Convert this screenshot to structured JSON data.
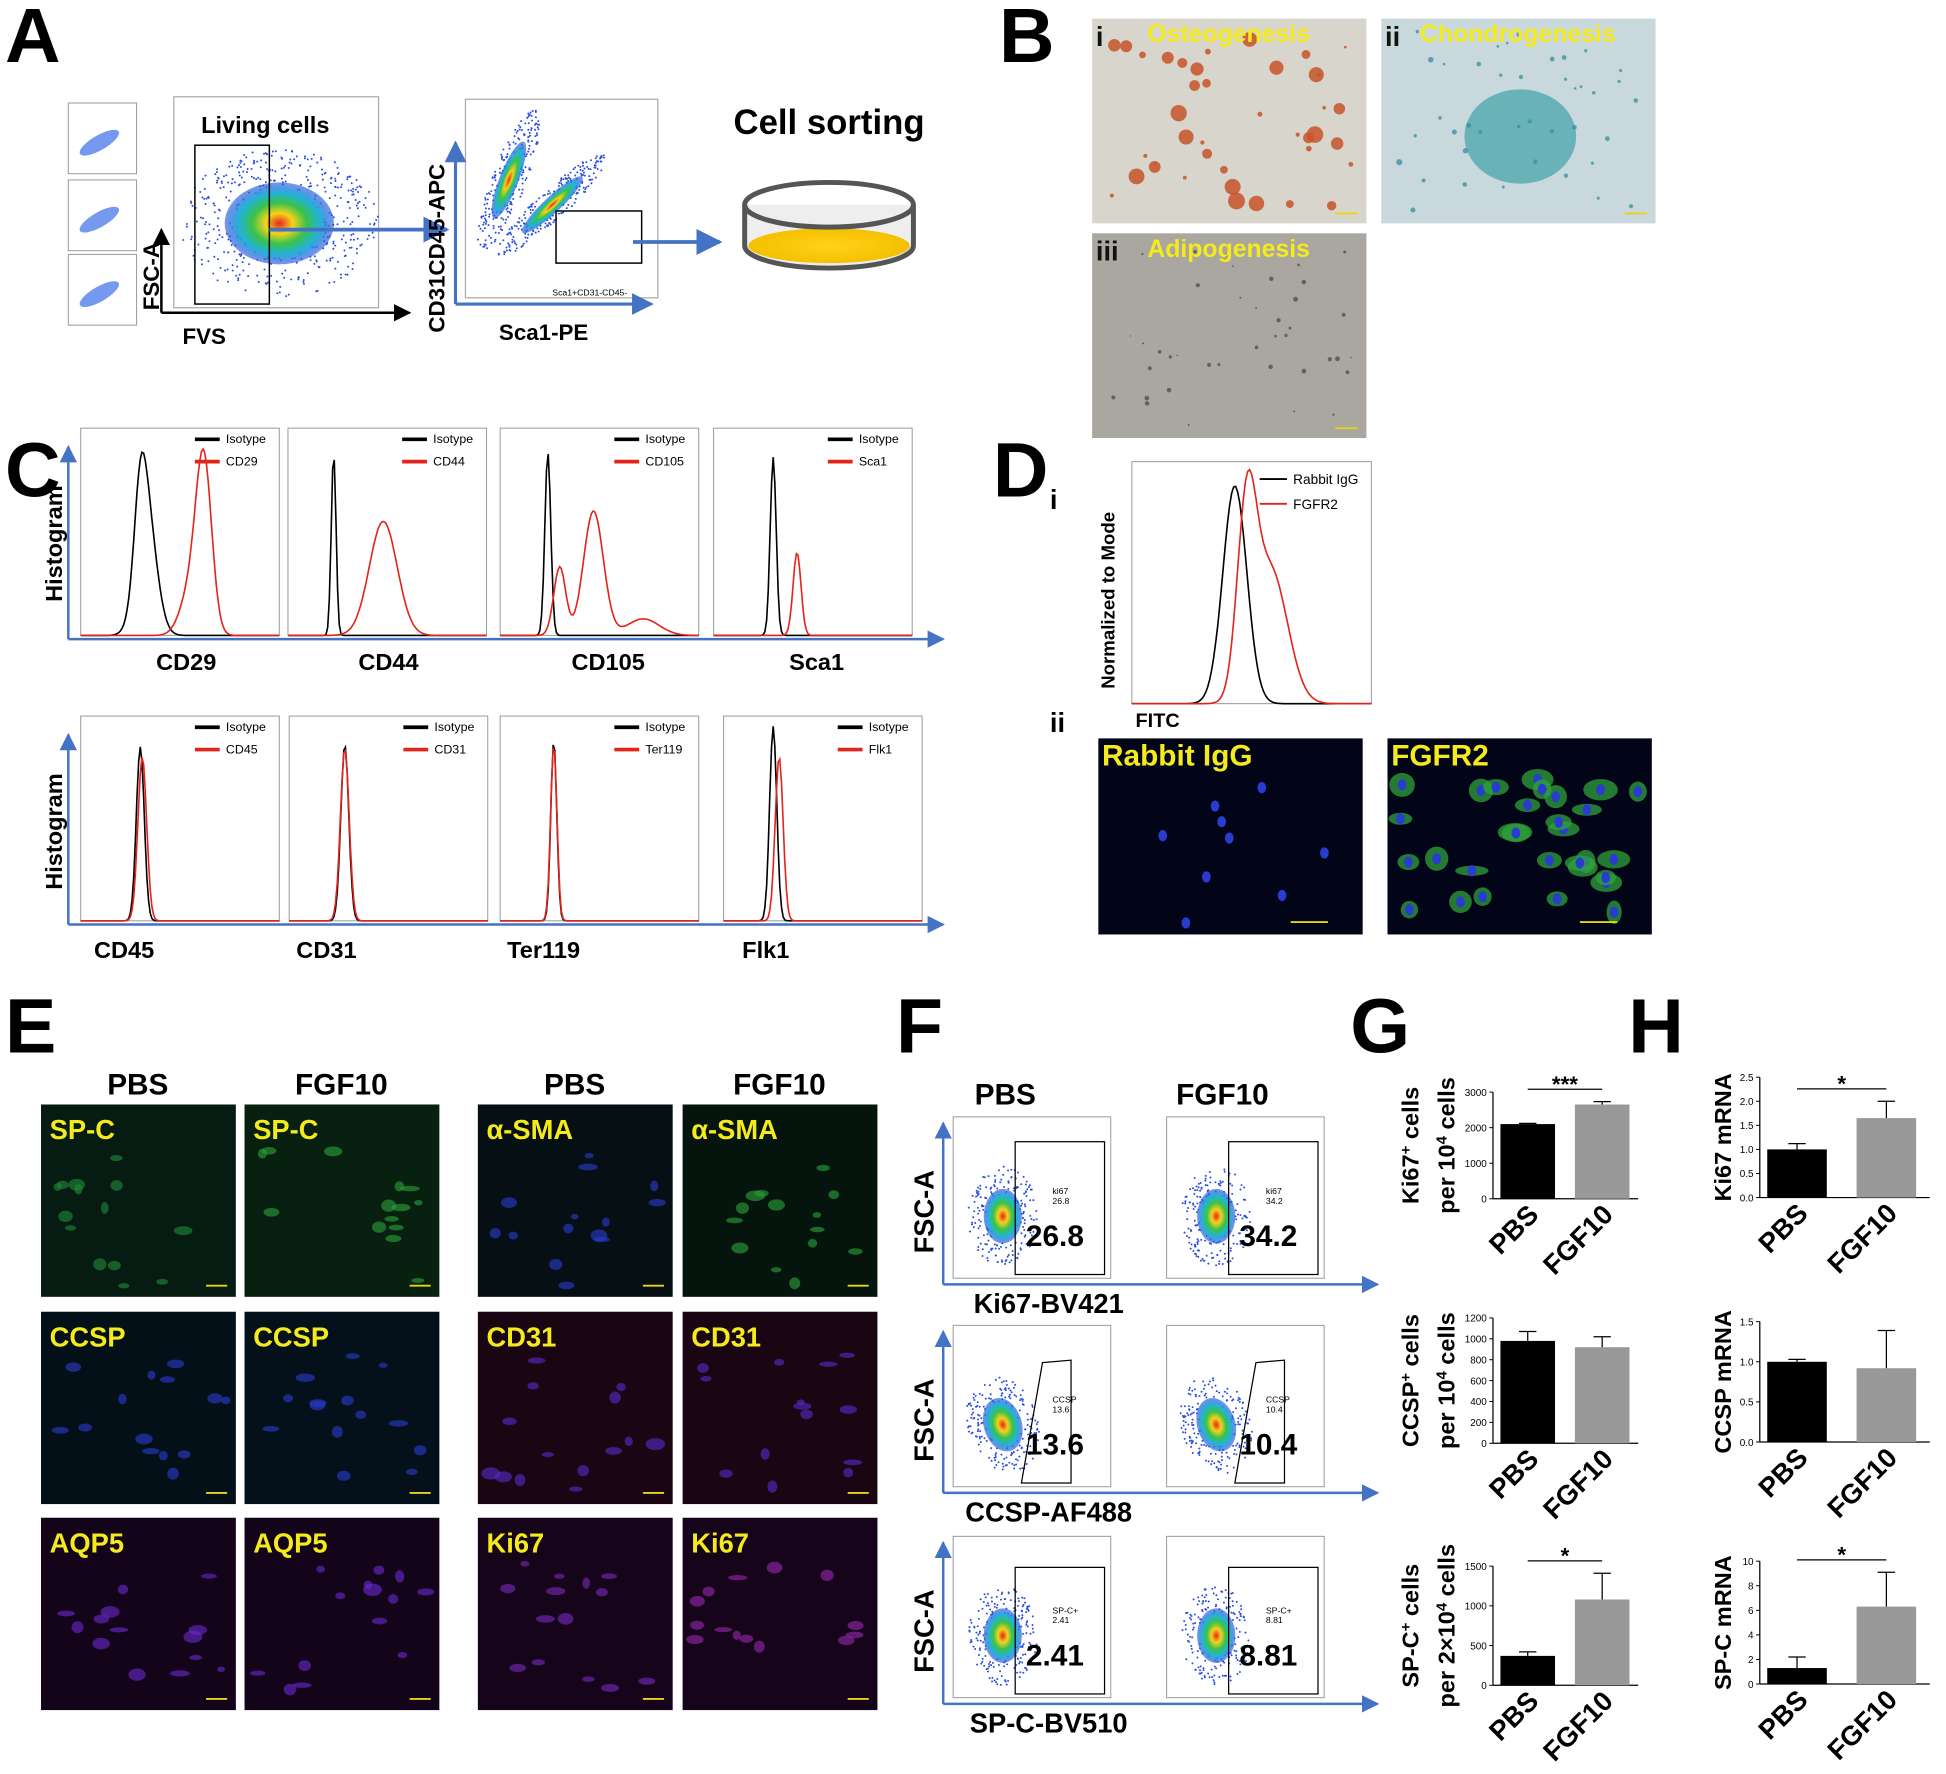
{
  "A": {
    "letter": "A",
    "gate_label": "Living cells",
    "x_label": "FVS",
    "y_label": "FSC-A",
    "gate2_label": "Sca1+CD31-CD45-",
    "x2_label": "Sca1-PE",
    "y2_label": "CD31CD45-APC",
    "sorting_label": "Cell sorting"
  },
  "B": {
    "letter": "B",
    "images": [
      {
        "numeral": "i",
        "label": "Osteogenesis"
      },
      {
        "numeral": "ii",
        "label": "Chondrogenesis"
      },
      {
        "numeral": "iii",
        "label": "Adipogenesis"
      }
    ]
  },
  "C": {
    "letter": "C",
    "rows": [
      {
        "y_label": "Histogram",
        "plots": [
          {
            "control": "Isotype",
            "marker": "CD29"
          },
          {
            "control": "Isotype",
            "marker": "CD44"
          },
          {
            "control": "Isotype",
            "marker": "CD105"
          },
          {
            "control": "Isotype",
            "marker": "Sca1"
          }
        ]
      },
      {
        "y_label": "Histogram",
        "plots": [
          {
            "control": "Isotype",
            "marker": "CD45"
          },
          {
            "control": "Isotype",
            "marker": "CD31"
          },
          {
            "control": "Isotype",
            "marker": "Ter119"
          },
          {
            "control": "Isotype",
            "marker": "Flk1"
          }
        ]
      }
    ]
  },
  "D": {
    "letter": "D",
    "sub_i": "i",
    "sub_ii": "ii",
    "y_label": "Normalized to Mode",
    "x_label": "FITC",
    "legend": [
      "Rabbit IgG",
      "FGFR2"
    ],
    "images": [
      "Rabbit IgG",
      "FGFR2"
    ]
  },
  "E": {
    "letter": "E",
    "groups": [
      {
        "headers": [
          "PBS",
          "FGF10"
        ],
        "rows": [
          "SP-C",
          "CCSP",
          "AQP5"
        ]
      },
      {
        "headers": [
          "PBS",
          "FGF10"
        ],
        "rows": [
          "α-SMA",
          "CD31",
          "Ki67"
        ]
      }
    ]
  },
  "F": {
    "letter": "F",
    "headers": [
      "PBS",
      "FGF10"
    ],
    "y_label": "FSC-A",
    "rows": [
      {
        "x_label": "Ki67-BV421",
        "gate": "ki67",
        "values": [
          26.8,
          34.2
        ]
      },
      {
        "x_label": "CCSP-AF488",
        "gate": "CCSP",
        "values": [
          13.6,
          10.4
        ]
      },
      {
        "x_label": "SP-C-BV510",
        "gate": "SP-C+",
        "values": [
          2.41,
          8.81
        ]
      }
    ]
  },
  "G": {
    "letter": "G",
    "charts": [
      {
        "type": "bar",
        "y_label": [
          [
            "Ki67",
            "+",
            " cells"
          ],
          [
            "per 10",
            "4",
            " cells"
          ]
        ],
        "categories": [
          "PBS",
          "FGF10"
        ],
        "values": [
          2100,
          2650
        ],
        "errors": [
          20,
          80
        ],
        "colors": [
          "#000000",
          "#999999"
        ],
        "ylim": [
          0,
          3000
        ],
        "yticks": [
          0,
          1000,
          2000,
          3000
        ],
        "significance": "***"
      },
      {
        "type": "bar",
        "y_label": [
          [
            "CCSP",
            "+",
            " cells"
          ],
          [
            "per 10",
            "4",
            " cells"
          ]
        ],
        "categories": [
          "PBS",
          "FGF10"
        ],
        "values": [
          980,
          920
        ],
        "errors": [
          90,
          100
        ],
        "colors": [
          "#000000",
          "#999999"
        ],
        "ylim": [
          0,
          1200
        ],
        "yticks": [
          0,
          200,
          400,
          600,
          800,
          1000,
          1200
        ]
      },
      {
        "type": "bar",
        "y_label": [
          [
            "SP-C",
            "+",
            " cells"
          ],
          [
            "per 2×10",
            "4",
            " cells"
          ]
        ],
        "categories": [
          "PBS",
          "FGF10"
        ],
        "values": [
          370,
          1080
        ],
        "errors": [
          50,
          330
        ],
        "colors": [
          "#000000",
          "#999999"
        ],
        "ylim": [
          0,
          1500
        ],
        "yticks": [
          0,
          500,
          1000,
          1500
        ],
        "significance": "*"
      }
    ]
  },
  "H": {
    "letter": "H",
    "charts": [
      {
        "type": "bar",
        "y_label": "Ki67 mRNA",
        "categories": [
          "PBS",
          "FGF10"
        ],
        "values": [
          1.0,
          1.65
        ],
        "errors": [
          0.12,
          0.35
        ],
        "colors": [
          "#000000",
          "#999999"
        ],
        "ylim": [
          0,
          2.5
        ],
        "yticks": [
          {
            "value": 0,
            "label": "0.0"
          },
          0.5,
          {
            "value": 1,
            "label": "1.0"
          },
          1.5,
          {
            "value": 2,
            "label": "2.0"
          },
          2.5
        ],
        "significance": "*"
      },
      {
        "type": "bar",
        "y_label": "CCSP mRNA",
        "categories": [
          "PBS",
          "FGF10"
        ],
        "values": [
          1.0,
          0.92
        ],
        "errors": [
          0.03,
          0.47
        ],
        "colors": [
          "#000000",
          "#999999"
        ],
        "ylim": [
          0,
          1.5
        ],
        "yticks": [
          {
            "value": 0,
            "label": "0.0"
          },
          0.5,
          {
            "value": 1,
            "label": "1.0"
          },
          1.5
        ]
      },
      {
        "type": "bar",
        "y_label": "SP-C mRNA",
        "categories": [
          "PBS",
          "FGF10"
        ],
        "values": [
          1.3,
          6.3
        ],
        "errors": [
          0.9,
          2.8
        ],
        "colors": [
          "#000000",
          "#999999"
        ],
        "ylim": [
          0,
          10
        ],
        "yticks": [
          0,
          2,
          4,
          6,
          8,
          10
        ],
        "significance": "*"
      }
    ]
  }
}
